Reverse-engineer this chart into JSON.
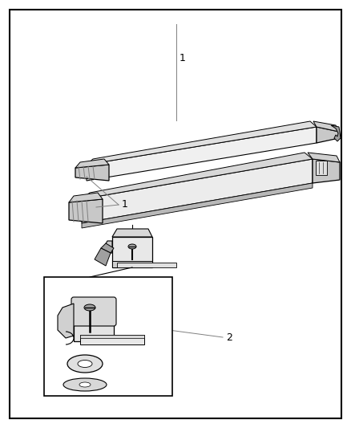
{
  "background_color": "#ffffff",
  "border_color": "#000000",
  "line_color": "#000000",
  "gray1": "#c8c8c8",
  "gray2": "#a0a0a0",
  "gray3": "#808080",
  "gray4": "#606060",
  "gray5": "#e8e8e8",
  "label1_text": "1",
  "label1b_text": "1",
  "label2_text": "2"
}
